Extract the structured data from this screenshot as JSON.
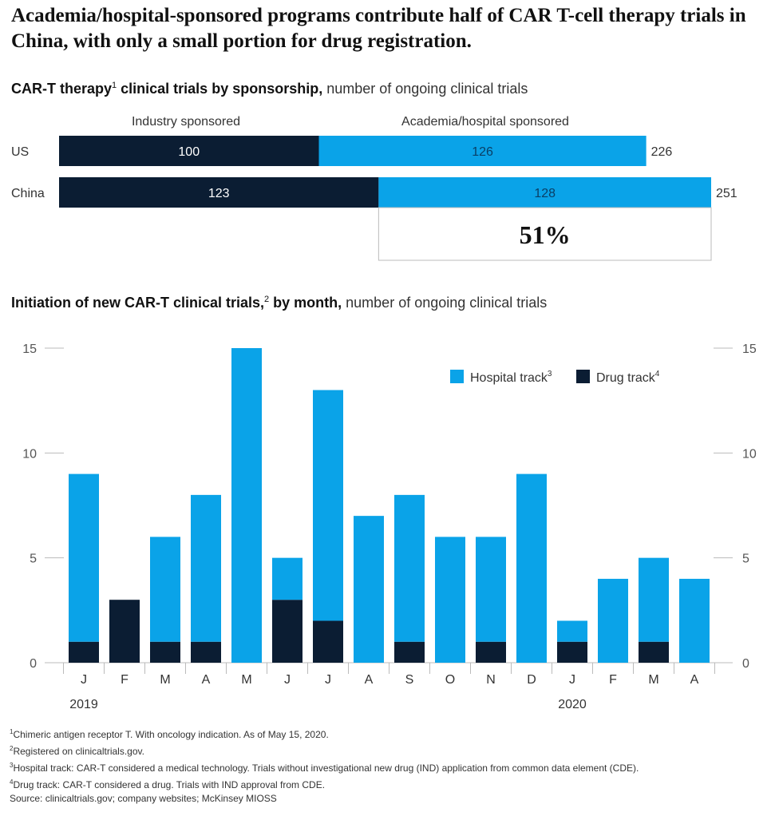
{
  "title": "Academia/hospital-sponsored programs contribute half of CAR T-cell therapy trials in China, with only a small portion for drug registration.",
  "colors": {
    "hospital": "#0aa3e8",
    "drug": "#0b1d33",
    "axis": "#bbbbbb",
    "text": "#333333"
  },
  "top_chart": {
    "subtitle_bold_1": "CAR-T therapy",
    "subtitle_sup": "1",
    "subtitle_bold_2": " clinical trials by sponsorship,",
    "subtitle_rest": " number of ongoing clinical trials",
    "highlight_label": "51%"
  },
  "bottom_chart": {
    "subtitle_bold_1": "Initiation of new CAR-T clinical trials,",
    "subtitle_sup": "2",
    "subtitle_bold_2": " by month,",
    "subtitle_rest": " number of ongoing clinical trials"
  },
  "chart_data": [
    {
      "type": "bar",
      "orientation": "horizontal",
      "stacked": true,
      "categories": [
        "US",
        "China"
      ],
      "series": [
        {
          "name": "Industry sponsored",
          "values": [
            100,
            123
          ]
        },
        {
          "name": "Academia/hospital sponsored",
          "values": [
            126,
            128
          ]
        }
      ],
      "totals": [
        226,
        251
      ],
      "annotation": "51%"
    },
    {
      "type": "bar",
      "stacked": true,
      "categories": [
        "J",
        "F",
        "M",
        "A",
        "M",
        "J",
        "J",
        "A",
        "S",
        "O",
        "N",
        "D",
        "J",
        "F",
        "M",
        "A"
      ],
      "year_labels": [
        {
          "label": "2019",
          "index": 0
        },
        {
          "label": "2020",
          "index": 12
        }
      ],
      "series": [
        {
          "name": "Drug track",
          "sup": "4",
          "values": [
            1,
            3,
            1,
            1,
            0,
            3,
            2,
            0,
            1,
            0,
            1,
            0,
            1,
            0,
            1,
            0
          ]
        },
        {
          "name": "Hospital track",
          "sup": "3",
          "values": [
            8,
            0,
            5,
            7,
            15,
            2,
            11,
            7,
            7,
            6,
            5,
            9,
            1,
            4,
            4,
            4
          ]
        }
      ],
      "yticks": [
        0,
        5,
        10,
        15
      ],
      "ylim": [
        0,
        15
      ],
      "legend_position": "top-right"
    }
  ],
  "footnotes": [
    {
      "sup": "1",
      "text": "Chimeric antigen receptor T. With oncology indication. As of May 15, 2020."
    },
    {
      "sup": "2",
      "text": "Registered on clinicaltrials.gov."
    },
    {
      "sup": "3",
      "text": "Hospital track: CAR-T considered a medical technology. Trials without investigational new drug (IND) application from common data element (CDE)."
    },
    {
      "sup": "4",
      "text": "Drug track: CAR-T considered a drug. Trials with IND approval from CDE."
    },
    {
      "sup": "",
      "text": "Source: clinicaltrials.gov; company websites; McKinsey MIOSS"
    }
  ]
}
